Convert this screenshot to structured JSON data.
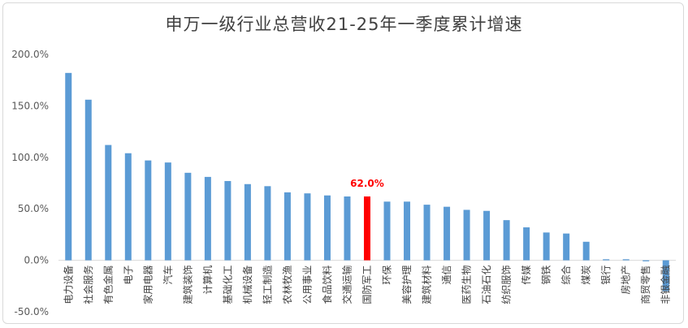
{
  "chart_data": {
    "type": "bar",
    "title": "申万一级行业总营收21-25年一季度累计增速",
    "xlabel": "",
    "ylabel": "",
    "ylim": [
      -50,
      200
    ],
    "ytick_values": [
      -50,
      0,
      50,
      100,
      150,
      200
    ],
    "ytick_labels": [
      "-50.0%",
      "0.0%",
      "50.0%",
      "100.0%",
      "150.0%",
      "200.0%"
    ],
    "grid": false,
    "legend": "none",
    "categories": [
      "电力设备",
      "社会服务",
      "有色金属",
      "电子",
      "家用电器",
      "汽车",
      "建筑装饰",
      "计算机",
      "基础化工",
      "机械设备",
      "轻工制造",
      "农林牧渔",
      "公用事业",
      "食品饮料",
      "交通运输",
      "国防军工",
      "环保",
      "美容护理",
      "建筑材料",
      "通信",
      "医药生物",
      "石油石化",
      "纺织服饰",
      "传媒",
      "钢铁",
      "综合",
      "煤炭",
      "银行",
      "房地产",
      "商贸零售",
      "非银金融"
    ],
    "values": [
      182,
      156,
      112,
      104,
      97,
      95,
      85,
      81,
      77,
      74,
      72,
      66,
      65,
      63,
      62,
      62.0,
      57,
      57,
      54,
      52,
      49,
      48,
      39,
      32,
      27,
      26,
      18,
      1,
      1,
      -1,
      -30
    ],
    "highlight_index": 15,
    "highlight_label": "62.0%",
    "colors": {
      "bar": "#5b9bd5",
      "highlight": "#ff0000",
      "axis": "#d9d9d9",
      "title": "#404040",
      "label_highlight": "#ff0000"
    }
  }
}
